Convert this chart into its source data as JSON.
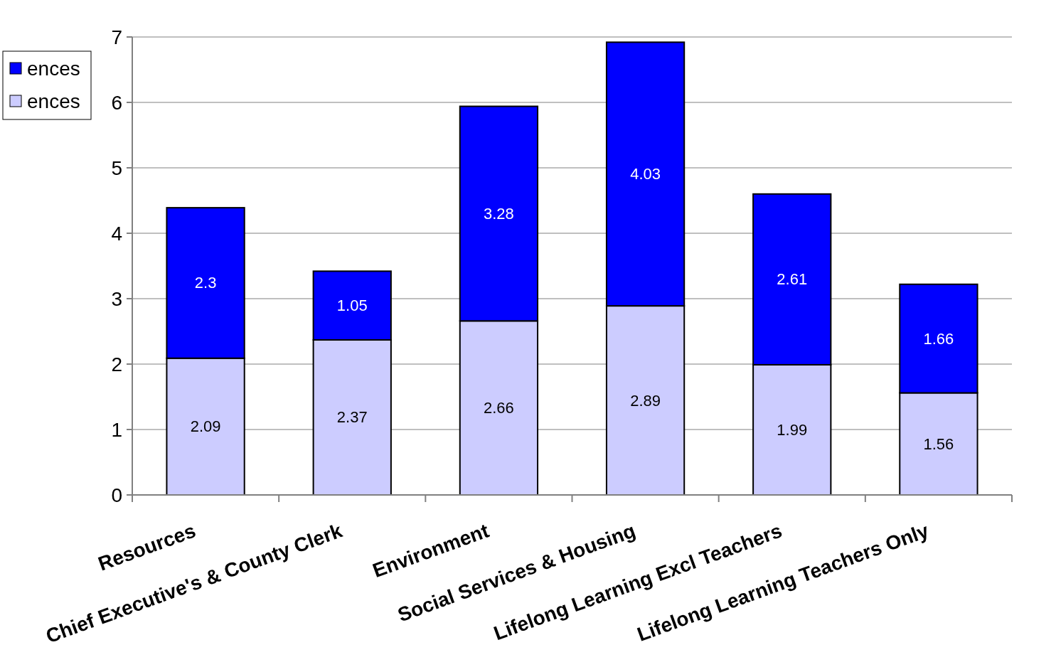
{
  "chart_data": {
    "type": "bar",
    "stacked": true,
    "categories": [
      "Resources",
      "Chief Executive's & County Clerk",
      "Environment",
      "Social Services & Housing",
      "Lifelong Learning Excl Teachers",
      "Lifelong Learning Teachers Only"
    ],
    "series": [
      {
        "name": "ences",
        "color": "#ccccff",
        "values": [
          2.09,
          2.37,
          2.66,
          2.89,
          1.99,
          1.56
        ]
      },
      {
        "name": "ences",
        "color": "#0000ff",
        "values": [
          2.3,
          1.05,
          3.28,
          4.03,
          2.61,
          1.66
        ]
      }
    ],
    "ylim": [
      0,
      7
    ],
    "yticks": [
      0,
      1,
      2,
      3,
      4,
      5,
      6,
      7
    ],
    "grid": "y",
    "legend": "left",
    "data_labels": true
  }
}
